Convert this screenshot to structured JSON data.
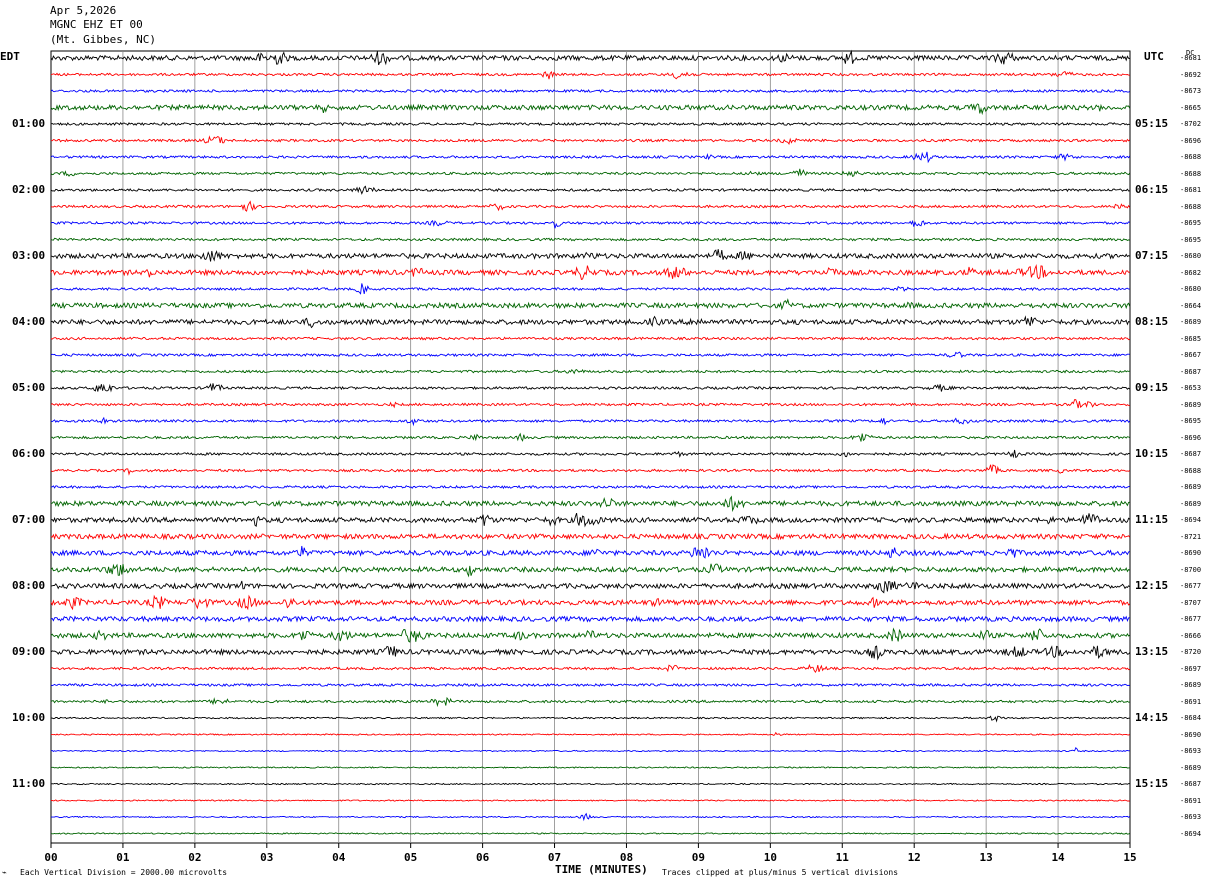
{
  "header": {
    "date": "Apr 5,2026",
    "station": "MGNC EHZ ET 00",
    "location": "(Mt. Gibbes, NC)"
  },
  "chart_data": {
    "type": "line",
    "title": "",
    "left_timezone": "EDT",
    "right_timezone": "UTC",
    "dc_header": "DC",
    "xlabel": "TIME (MINUTES)",
    "xlim": [
      0,
      15
    ],
    "x_ticks": [
      "00",
      "01",
      "02",
      "03",
      "04",
      "05",
      "06",
      "07",
      "08",
      "09",
      "10",
      "11",
      "12",
      "13",
      "14",
      "15"
    ],
    "trace_colors": [
      "#000000",
      "#ff0000",
      "#0000ff",
      "#006400"
    ],
    "left_hour_labels": [
      "01:00",
      "02:00",
      "03:00",
      "04:00",
      "05:00",
      "06:00",
      "07:00",
      "08:00",
      "09:00",
      "10:00",
      "11:00"
    ],
    "right_hour_labels": [
      "05:15",
      "06:15",
      "07:15",
      "08:15",
      "09:15",
      "10:15",
      "11:15",
      "12:15",
      "13:15",
      "14:15",
      "15:15"
    ],
    "dc_offsets": [
      "-8681",
      "-8692",
      "-8673",
      "-8665",
      "-8702",
      "-8696",
      "-8688",
      "-8688",
      "-8681",
      "-8688",
      "-8695",
      "-8695",
      "-8680",
      "-8682",
      "-8680",
      "-8664",
      "-8689",
      "-8685",
      "-8667",
      "-8687",
      "-8653",
      "-8689",
      "-8695",
      "-8696",
      "-8687",
      "-8688",
      "-8689",
      "-8689",
      "-8694",
      "-8721",
      "-8690",
      "-8700",
      "-8677",
      "-8707",
      "-8677",
      "-8666",
      "-8720",
      "-8697",
      "-8689",
      "-8691",
      "-8684",
      "-8690",
      "-8693",
      "-8689",
      "-8687",
      "-8691",
      "-8693",
      "-8694"
    ],
    "trace_activity": [
      2,
      1,
      1,
      2,
      1,
      1,
      1,
      1,
      1,
      1,
      1,
      1,
      2,
      2,
      1,
      2,
      2,
      1,
      1,
      1,
      1,
      1,
      1,
      1,
      1,
      1,
      1,
      2,
      2,
      2,
      2,
      2,
      2,
      2,
      2,
      2,
      2,
      1,
      1,
      1,
      0.6,
      0.5,
      0.5,
      0.5,
      0.5,
      0.5,
      0.5,
      0.5
    ],
    "footer_scale": "Each Vertical Division = 2000.00 microvolts",
    "footer_clip": "Traces clipped at plus/minus 5 vertical divisions"
  }
}
